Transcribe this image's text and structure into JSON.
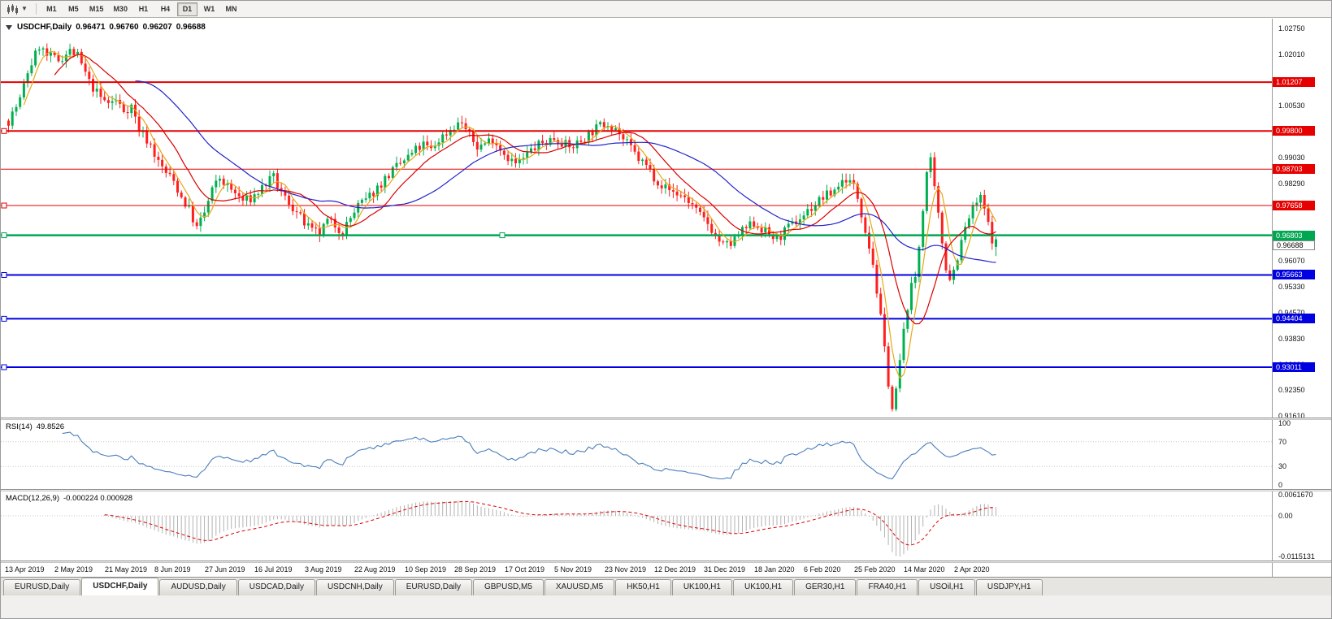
{
  "toolbar": {
    "timeframes": [
      {
        "label": "M1",
        "active": false
      },
      {
        "label": "M5",
        "active": false
      },
      {
        "label": "M15",
        "active": false
      },
      {
        "label": "M30",
        "active": false
      },
      {
        "label": "H1",
        "active": false
      },
      {
        "label": "H4",
        "active": false
      },
      {
        "label": "D1",
        "active": true
      },
      {
        "label": "W1",
        "active": false
      },
      {
        "label": "MN",
        "active": false
      }
    ]
  },
  "chart": {
    "symbol": "USDCHF,Daily",
    "open": "0.96471",
    "high": "0.96760",
    "low": "0.96207",
    "close": "0.96688",
    "current_price_tag": "0.96688"
  },
  "indicators": {
    "rsi": {
      "name": "RSI(14)",
      "value": "49.8526",
      "axis": [
        "100",
        "70",
        "30",
        "0"
      ],
      "axis_values": [
        100,
        70,
        30,
        0
      ],
      "levels": [
        70,
        30
      ],
      "color": "#4a7ebb"
    },
    "macd": {
      "name": "MACD(12,26,9)",
      "value": "-0.000224 0.000928",
      "axis": [
        "0.0061670",
        "0.00",
        "-0.0115131"
      ],
      "hist_color": "#b2b2b2",
      "signal_color": "#dd0000"
    }
  },
  "chart_data": {
    "type": "candlestick",
    "symbol": "USDCHF",
    "timeframe": "Daily",
    "y_range": {
      "top": 1.0275,
      "bottom": 0.9161
    },
    "bull_color": "#00b050",
    "bear_color": "#ff1f1f",
    "candle_count": 258,
    "price_axis_ticks": [
      "1.02750",
      "1.02010",
      "1.00530",
      "0.99030",
      "0.98290",
      "0.96070",
      "0.95330",
      "0.94570",
      "0.93830",
      "0.93090",
      "0.92350",
      "0.91610"
    ],
    "x_labels": [
      "13 Apr 2019",
      "2 May 2019",
      "21 May 2019",
      "8 Jun 2019",
      "27 Jun 2019",
      "16 Jul 2019",
      "3 Aug 2019",
      "22 Aug 2019",
      "10 Sep 2019",
      "28 Sep 2019",
      "17 Oct 2019",
      "5 Nov 2019",
      "23 Nov 2019",
      "12 Dec 2019",
      "31 Dec 2019",
      "18 Jan 2020",
      "6 Feb 2020",
      "25 Feb 2020",
      "14 Mar 2020",
      "2 Apr 2020"
    ],
    "x_label_candle_interval": 13,
    "horizontal_lines": [
      {
        "price": 1.01207,
        "label": "1.01207",
        "color": "#e60000",
        "width": 2,
        "handles": []
      },
      {
        "price": 0.998,
        "label": "0.99800",
        "color": "#e60000",
        "width": 2,
        "handles": [
          1
        ]
      },
      {
        "price": 0.98703,
        "label": "0.98703",
        "color": "#e60000",
        "width": 1,
        "handles": []
      },
      {
        "price": 0.97658,
        "label": "0.97658",
        "color": "#e60000",
        "width": 1,
        "handles": [
          1
        ]
      },
      {
        "price": 0.96803,
        "label": "0.96803",
        "color": "#00a650",
        "width": 2.5,
        "handles": [
          1,
          614
        ]
      },
      {
        "price": 0.95663,
        "label": "0.95663",
        "color": "#0000e0",
        "width": 2,
        "handles": [
          1
        ]
      },
      {
        "price": 0.94404,
        "label": "0.94404",
        "color": "#0000e0",
        "width": 2,
        "handles": [
          1
        ]
      },
      {
        "price": 0.93011,
        "label": "0.93011",
        "color": "#0000e0",
        "width": 2,
        "handles": [
          1
        ]
      }
    ],
    "moving_averages": [
      {
        "period": 5,
        "color": "#e6a817"
      },
      {
        "period": 13,
        "color": "#d90000"
      },
      {
        "period": 34,
        "color": "#2222cc"
      }
    ],
    "price_path": [
      [
        0,
        1.001
      ],
      [
        3,
        1.007
      ],
      [
        5,
        1.015
      ],
      [
        8,
        1.0225
      ],
      [
        10,
        1.0195
      ],
      [
        13,
        1.0185
      ],
      [
        16,
        1.021
      ],
      [
        18,
        1.0195
      ],
      [
        21,
        1.012
      ],
      [
        24,
        1.0075
      ],
      [
        26,
        1.006
      ],
      [
        28,
        1.0068
      ],
      [
        30,
        1.004
      ],
      [
        32,
        1.0052
      ],
      [
        34,
        0.9985
      ],
      [
        37,
        0.994
      ],
      [
        39,
        0.989
      ],
      [
        41,
        0.986
      ],
      [
        43,
        0.9835
      ],
      [
        45,
        0.979
      ],
      [
        47,
        0.9755
      ],
      [
        49,
        0.97
      ],
      [
        51,
        0.9745
      ],
      [
        53,
        0.981
      ],
      [
        55,
        0.9845
      ],
      [
        57,
        0.982
      ],
      [
        59,
        0.98
      ],
      [
        61,
        0.978
      ],
      [
        63,
        0.9785
      ],
      [
        65,
        0.9805
      ],
      [
        67,
        0.983
      ],
      [
        69,
        0.9845
      ],
      [
        71,
        0.98
      ],
      [
        73,
        0.9775
      ],
      [
        75,
        0.9745
      ],
      [
        77,
        0.9715
      ],
      [
        79,
        0.969
      ],
      [
        81,
        0.9685
      ],
      [
        83,
        0.972
      ],
      [
        85,
        0.971
      ],
      [
        87,
        0.969
      ],
      [
        89,
        0.973
      ],
      [
        91,
        0.9765
      ],
      [
        93,
        0.978
      ],
      [
        95,
        0.9805
      ],
      [
        97,
        0.983
      ],
      [
        99,
        0.9855
      ],
      [
        102,
        0.9885
      ],
      [
        104,
        0.9905
      ],
      [
        106,
        0.9925
      ],
      [
        108,
        0.994
      ],
      [
        110,
        0.9925
      ],
      [
        112,
        0.9955
      ],
      [
        114,
        0.9975
      ],
      [
        116,
        0.9995
      ],
      [
        118,
        1.0005
      ],
      [
        120,
        0.9965
      ],
      [
        122,
        0.9935
      ],
      [
        124,
        0.9945
      ],
      [
        126,
        0.996
      ],
      [
        128,
        0.993
      ],
      [
        130,
        0.9905
      ],
      [
        132,
        0.9885
      ],
      [
        134,
        0.99
      ],
      [
        136,
        0.9925
      ],
      [
        138,
        0.994
      ],
      [
        140,
        0.995
      ],
      [
        142,
        0.996
      ],
      [
        144,
        0.995
      ],
      [
        146,
        0.993
      ],
      [
        148,
        0.9945
      ],
      [
        150,
        0.996
      ],
      [
        152,
        0.998
      ],
      [
        154,
        0.9995
      ],
      [
        156,
        1.0005
      ],
      [
        158,
        0.999
      ],
      [
        160,
        0.9955
      ],
      [
        162,
        0.993
      ],
      [
        164,
        0.99
      ],
      [
        166,
        0.988
      ],
      [
        168,
        0.985
      ],
      [
        170,
        0.9825
      ],
      [
        172,
        0.981
      ],
      [
        174,
        0.98
      ],
      [
        176,
        0.979
      ],
      [
        178,
        0.9765
      ],
      [
        180,
        0.9735
      ],
      [
        182,
        0.9715
      ],
      [
        184,
        0.968
      ],
      [
        186,
        0.965
      ],
      [
        188,
        0.9655
      ],
      [
        190,
        0.968
      ],
      [
        192,
        0.97
      ],
      [
        194,
        0.9715
      ],
      [
        196,
        0.97
      ],
      [
        198,
        0.968
      ],
      [
        200,
        0.967
      ],
      [
        202,
        0.969
      ],
      [
        204,
        0.971
      ],
      [
        206,
        0.973
      ],
      [
        208,
        0.975
      ],
      [
        210,
        0.977
      ],
      [
        212,
        0.979
      ],
      [
        214,
        0.98
      ],
      [
        216,
        0.9825
      ],
      [
        218,
        0.9845
      ],
      [
        220,
        0.982
      ],
      [
        221,
        0.979
      ],
      [
        222,
        0.9745
      ],
      [
        223,
        0.97
      ],
      [
        224,
        0.965
      ],
      [
        225,
        0.96
      ],
      [
        226,
        0.952
      ],
      [
        227,
        0.944
      ],
      [
        228,
        0.935
      ],
      [
        229,
        0.926
      ],
      [
        230,
        0.918
      ],
      [
        231,
        0.923
      ],
      [
        232,
        0.932
      ],
      [
        233,
        0.94
      ],
      [
        234,
        0.948
      ],
      [
        235,
        0.953
      ],
      [
        236,
        0.956
      ],
      [
        237,
        0.965
      ],
      [
        238,
        0.976
      ],
      [
        239,
        0.986
      ],
      [
        240,
        0.989
      ],
      [
        241,
        0.981
      ],
      [
        242,
        0.9735
      ],
      [
        243,
        0.966
      ],
      [
        244,
        0.959
      ],
      [
        245,
        0.956
      ],
      [
        246,
        0.958
      ],
      [
        247,
        0.962
      ],
      [
        248,
        0.966
      ],
      [
        249,
        0.97
      ],
      [
        250,
        0.973
      ],
      [
        251,
        0.9755
      ],
      [
        252,
        0.9775
      ],
      [
        253,
        0.9785
      ],
      [
        254,
        0.9755
      ],
      [
        255,
        0.971
      ],
      [
        256,
        0.9672
      ],
      [
        257,
        0.9669
      ]
    ]
  },
  "tabs": [
    {
      "label": "EURUSD,Daily",
      "active": false
    },
    {
      "label": "USDCHF,Daily",
      "active": true
    },
    {
      "label": "AUDUSD,Daily",
      "active": false
    },
    {
      "label": "USDCAD,Daily",
      "active": false
    },
    {
      "label": "USDCNH,Daily",
      "active": false
    },
    {
      "label": "EURUSD,Daily",
      "active": false
    },
    {
      "label": "GBPUSD,M5",
      "active": false
    },
    {
      "label": "XAUUSD,M5",
      "active": false
    },
    {
      "label": "HK50,H1",
      "active": false
    },
    {
      "label": "UK100,H1",
      "active": false
    },
    {
      "label": "UK100,H1",
      "active": false
    },
    {
      "label": "GER30,H1",
      "active": false
    },
    {
      "label": "FRA40,H1",
      "active": false
    },
    {
      "label": "USOil,H1",
      "active": false
    },
    {
      "label": "USDJPY,H1",
      "active": false
    }
  ]
}
